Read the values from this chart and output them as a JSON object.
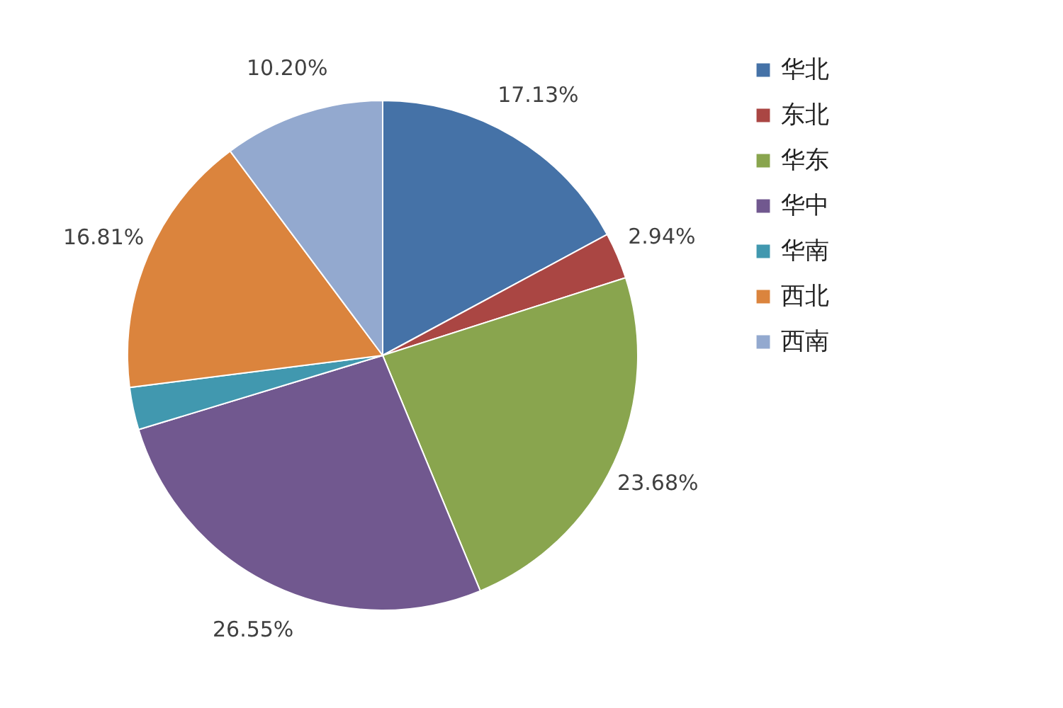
{
  "chart_data": {
    "type": "pie",
    "categories": [
      "华北",
      "东北",
      "华东",
      "华中",
      "华南",
      "西北",
      "西南"
    ],
    "values": [
      17.13,
      2.94,
      23.68,
      26.55,
      2.69,
      16.81,
      10.2
    ],
    "value_labels": [
      "17.13%",
      "2.94%",
      "23.68%",
      "26.55%",
      null,
      "16.81%",
      "10.20%"
    ],
    "colors": [
      "#4572a7",
      "#aa4643",
      "#89a54e",
      "#71588f",
      "#4198af",
      "#db843d",
      "#93a9cf"
    ],
    "legend": "right"
  }
}
